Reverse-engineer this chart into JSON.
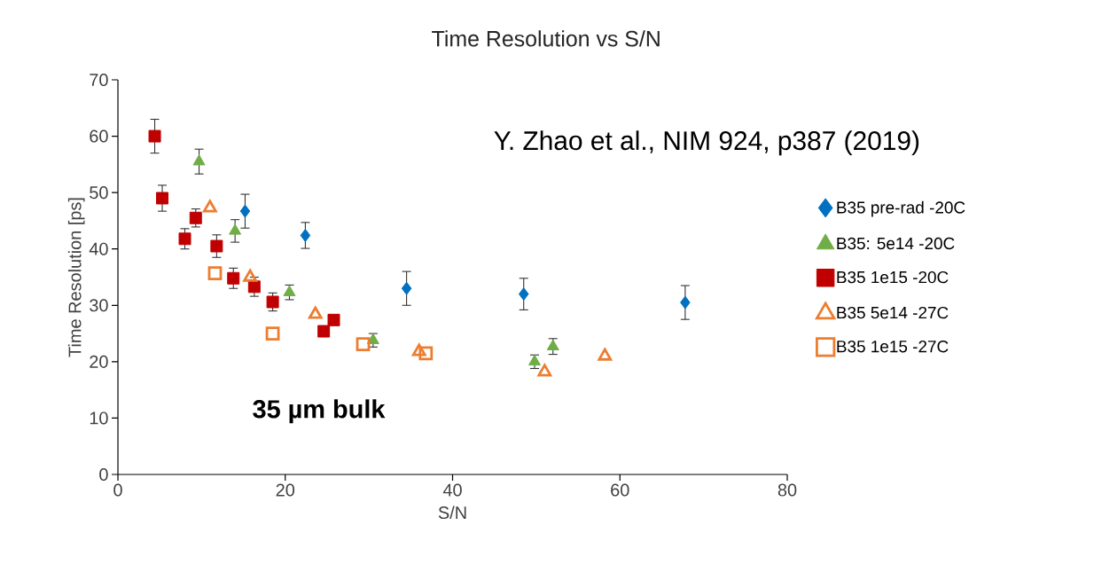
{
  "chart_data": {
    "type": "scatter",
    "title": "Time Resolution vs S/N",
    "xlabel": "S/N",
    "ylabel": "Time Resolution [ps]",
    "xlim": [
      0,
      80
    ],
    "xticks": [
      0,
      20,
      40,
      60,
      80
    ],
    "ylim": [
      0,
      70
    ],
    "yticks": [
      0,
      10,
      20,
      30,
      40,
      50,
      60,
      70
    ],
    "grid": false,
    "legend": "right",
    "annotations": [
      "Y. Zhao et al., NIM 924, p387 (2019)",
      "35 µm bulk"
    ],
    "series": [
      {
        "name": "B35 pre-rad -20C",
        "color": "#0070c0",
        "marker": "diamond",
        "x": [
          15.2,
          22.4,
          34.5,
          48.5,
          67.8
        ],
        "values": [
          46.7,
          42.4,
          33.0,
          32.0,
          30.5
        ],
        "errors": [
          3.0,
          2.3,
          3.0,
          2.8,
          3.0
        ]
      },
      {
        "name": "B35: 5e14 -20C",
        "color": "#70ad47",
        "marker": "triangle",
        "x": [
          9.7,
          14.0,
          20.5,
          30.5,
          49.8,
          52.0
        ],
        "values": [
          55.5,
          43.2,
          32.3,
          23.8,
          20.0,
          22.7
        ],
        "errors": [
          2.2,
          2.0,
          1.3,
          1.2,
          1.2,
          1.4
        ]
      },
      {
        "name": "B35 1e15 -20C",
        "color": "#c00000",
        "marker": "square",
        "x": [
          4.4,
          5.3,
          8.0,
          9.3,
          11.8,
          13.8,
          16.3,
          18.5,
          24.6,
          25.8
        ],
        "values": [
          60.0,
          49.0,
          41.8,
          45.5,
          40.5,
          34.8,
          33.3,
          30.6,
          25.4,
          27.4
        ],
        "errors": [
          3.0,
          2.3,
          1.8,
          1.6,
          2.0,
          1.8,
          1.7,
          1.6,
          null,
          null
        ]
      },
      {
        "name": "B35 5e14 -27C",
        "color": "#ed7d31",
        "marker": "triangle-open",
        "x": [
          11.0,
          15.8,
          23.6,
          36.0,
          51.0,
          58.2
        ],
        "values": [
          47.3,
          35.0,
          28.4,
          21.8,
          18.2,
          21.0
        ]
      },
      {
        "name": "B35 1e15 -27C",
        "color": "#ed7d31",
        "marker": "square-open",
        "x": [
          11.6,
          18.5,
          29.3,
          36.8
        ],
        "values": [
          35.7,
          25.0,
          23.1,
          21.5
        ]
      }
    ]
  }
}
